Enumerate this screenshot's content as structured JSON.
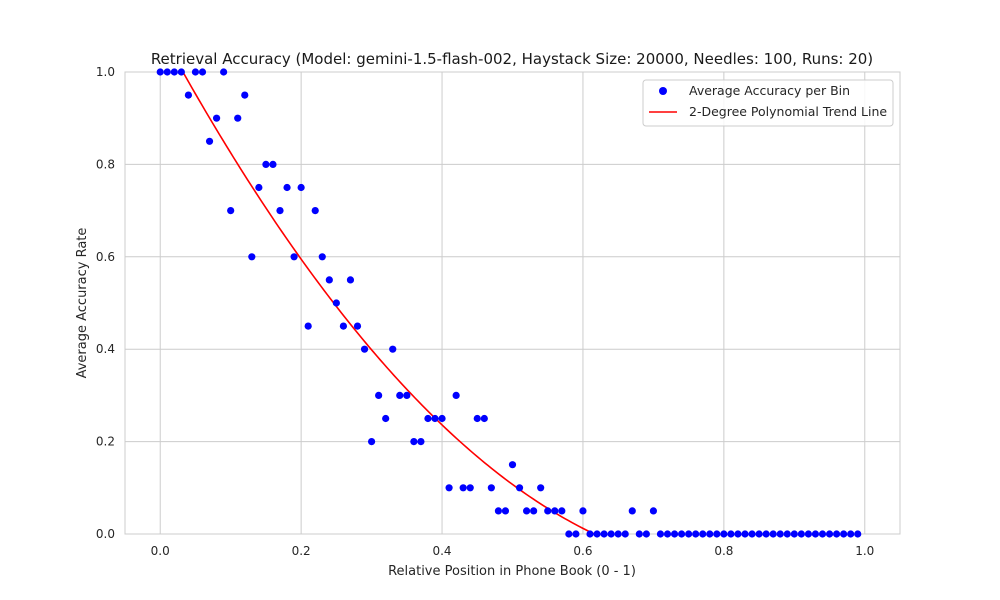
{
  "chart_data": {
    "type": "scatter",
    "title": "Retrieval Accuracy (Model: gemini-1.5-flash-002, Haystack Size: 20000, Needles: 100, Runs: 20)",
    "xlabel": "Relative Position in Phone Book (0 - 1)",
    "ylabel": "Average Accuracy Rate",
    "xlim": [
      -0.05,
      1.05
    ],
    "ylim": [
      0,
      1
    ],
    "xticks": [
      0.0,
      0.2,
      0.4,
      0.6,
      0.8,
      1.0
    ],
    "xtick_labels": [
      "0.0",
      "0.2",
      "0.4",
      "0.6",
      "0.8",
      "1.0"
    ],
    "yticks": [
      0.0,
      0.2,
      0.4,
      0.6,
      0.8,
      1.0
    ],
    "ytick_labels": [
      "0.0",
      "0.2",
      "0.4",
      "0.6",
      "0.8",
      "1.0"
    ],
    "grid": true,
    "legend_position": "top-right",
    "series": [
      {
        "name": "Average Accuracy per Bin",
        "kind": "scatter",
        "color": "#0000ff",
        "x": [
          0.0,
          0.01,
          0.02,
          0.03,
          0.04,
          0.05,
          0.06,
          0.07,
          0.08,
          0.09,
          0.1,
          0.11,
          0.12,
          0.13,
          0.14,
          0.15,
          0.16,
          0.17,
          0.18,
          0.19,
          0.2,
          0.21,
          0.22,
          0.23,
          0.24,
          0.25,
          0.26,
          0.27,
          0.28,
          0.29,
          0.3,
          0.31,
          0.32,
          0.33,
          0.34,
          0.35,
          0.36,
          0.37,
          0.38,
          0.39,
          0.4,
          0.41,
          0.42,
          0.43,
          0.44,
          0.45,
          0.46,
          0.47,
          0.48,
          0.49,
          0.5,
          0.51,
          0.52,
          0.53,
          0.54,
          0.55,
          0.56,
          0.57,
          0.58,
          0.59,
          0.6,
          0.61,
          0.62,
          0.63,
          0.64,
          0.65,
          0.66,
          0.67,
          0.68,
          0.69,
          0.7,
          0.71,
          0.72,
          0.73,
          0.74,
          0.75,
          0.76,
          0.77,
          0.78,
          0.79,
          0.8,
          0.81,
          0.82,
          0.83,
          0.84,
          0.85,
          0.86,
          0.87,
          0.88,
          0.89,
          0.9,
          0.91,
          0.92,
          0.93,
          0.94,
          0.95,
          0.96,
          0.97,
          0.98,
          0.99
        ],
        "y": [
          1.0,
          1.0,
          1.0,
          1.0,
          0.95,
          1.0,
          1.0,
          0.85,
          0.9,
          1.0,
          0.7,
          0.9,
          0.95,
          0.6,
          0.75,
          0.8,
          0.8,
          0.7,
          0.75,
          0.6,
          0.75,
          0.45,
          0.7,
          0.6,
          0.55,
          0.5,
          0.45,
          0.55,
          0.45,
          0.4,
          0.2,
          0.3,
          0.25,
          0.4,
          0.3,
          0.3,
          0.2,
          0.2,
          0.25,
          0.25,
          0.25,
          0.1,
          0.3,
          0.1,
          0.1,
          0.25,
          0.25,
          0.1,
          0.05,
          0.05,
          0.15,
          0.1,
          0.05,
          0.05,
          0.1,
          0.05,
          0.05,
          0.05,
          0.0,
          0.0,
          0.05,
          0.0,
          0.0,
          0.0,
          0.0,
          0.0,
          0.0,
          0.05,
          0.0,
          0.0,
          0.05,
          0.0,
          0.0,
          0.0,
          0.0,
          0.0,
          0.0,
          0.0,
          0.0,
          0.0,
          0.0,
          0.0,
          0.0,
          0.0,
          0.0,
          0.0,
          0.0,
          0.0,
          0.0,
          0.0,
          0.0,
          0.0,
          0.0,
          0.0,
          0.0,
          0.0,
          0.0,
          0.0,
          0.0,
          0.0
        ]
      },
      {
        "name": "2-Degree Polynomial Trend Line",
        "kind": "line",
        "color": "#ff0000",
        "polynomial_coefficients": [
          1.0887,
          -2.8062,
          1.6867
        ],
        "x_range": [
          0.0,
          0.99
        ]
      }
    ]
  }
}
